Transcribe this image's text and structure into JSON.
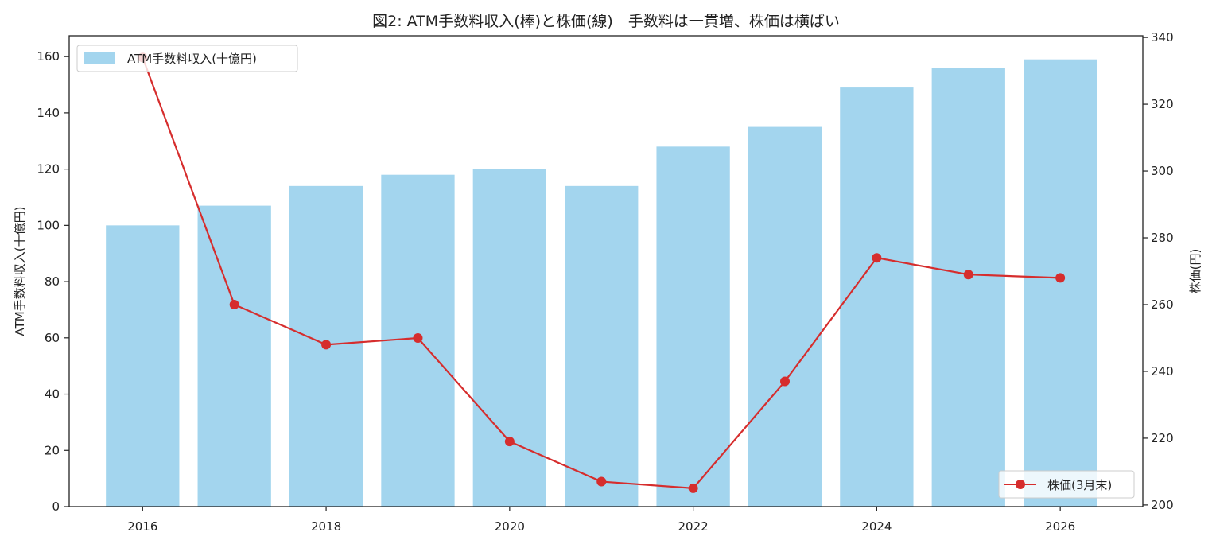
{
  "chart_data": {
    "type": "bar",
    "title": "図2: ATM手数料収入(棒)と株価(線)　手数料は一貫増、株価は横ばい",
    "x": [
      2016,
      2017,
      2018,
      2019,
      2020,
      2021,
      2022,
      2023,
      2024,
      2025,
      2026
    ],
    "xticks": [
      "2016",
      "2018",
      "2020",
      "2022",
      "2024",
      "2026"
    ],
    "xlim": [
      2015.2,
      2026.9
    ],
    "series": [
      {
        "name": "ATM手数料収入(十億円)",
        "type": "bar",
        "axis": "left",
        "color": "#a3d5ee",
        "values": [
          100,
          107,
          114,
          118,
          120,
          114,
          128,
          135,
          149,
          156,
          159
        ]
      },
      {
        "name": "株価(3月末)",
        "type": "line",
        "axis": "right",
        "color": "#d62d2d",
        "marker": "circle",
        "values": [
          334,
          260,
          248,
          250,
          219,
          207,
          205,
          237,
          274,
          269,
          268
        ]
      }
    ],
    "y_left": {
      "label": "ATM手数料収入(十億円)",
      "lim": [
        0,
        167.4
      ],
      "ticks": [
        "0",
        "20",
        "40",
        "60",
        "80",
        "100",
        "120",
        "140",
        "160"
      ]
    },
    "y_right": {
      "label": "株価(円)",
      "lim": [
        199.5,
        340.5
      ],
      "ticks": [
        "200",
        "220",
        "240",
        "260",
        "280",
        "300",
        "320",
        "340"
      ]
    },
    "legend": [
      {
        "label": "ATM手数料収入(十億円)",
        "placement": "top-left"
      },
      {
        "label": "株価(3月末)",
        "placement": "bottom-right"
      }
    ],
    "grid": false
  }
}
